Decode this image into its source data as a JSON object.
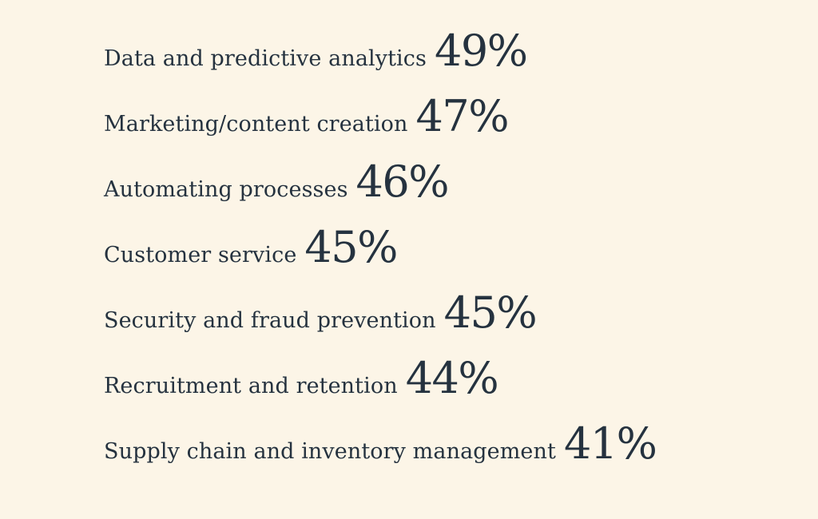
{
  "stats": [
    {
      "label": "Data and predictive analytics",
      "value": "49%"
    },
    {
      "label": "Marketing/content creation",
      "value": "47%"
    },
    {
      "label": "Automating processes",
      "value": "46%"
    },
    {
      "label": "Customer service",
      "value": "45%"
    },
    {
      "label": "Security and fraud prevention",
      "value": "45%"
    },
    {
      "label": "Recruitment and retention",
      "value": "44%"
    },
    {
      "label": "Supply chain and inventory management",
      "value": "41%"
    }
  ]
}
